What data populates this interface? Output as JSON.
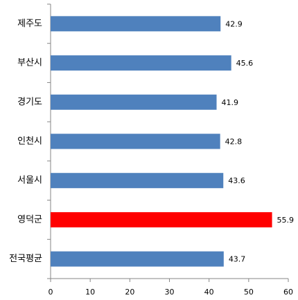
{
  "chart_data": {
    "type": "hbar",
    "categories": [
      "제주도",
      "부산시",
      "경기도",
      "인천시",
      "서울시",
      "영덕군",
      "전국평균"
    ],
    "values": [
      42.9,
      45.6,
      41.9,
      42.8,
      43.6,
      55.9,
      43.7
    ],
    "colors": [
      "#4f81bd",
      "#4f81bd",
      "#4f81bd",
      "#4f81bd",
      "#4f81bd",
      "#ff0000",
      "#4f81bd"
    ],
    "xlim": [
      0,
      60
    ],
    "xticks": [
      0,
      10,
      20,
      30,
      40,
      50,
      60
    ],
    "grid": false
  }
}
